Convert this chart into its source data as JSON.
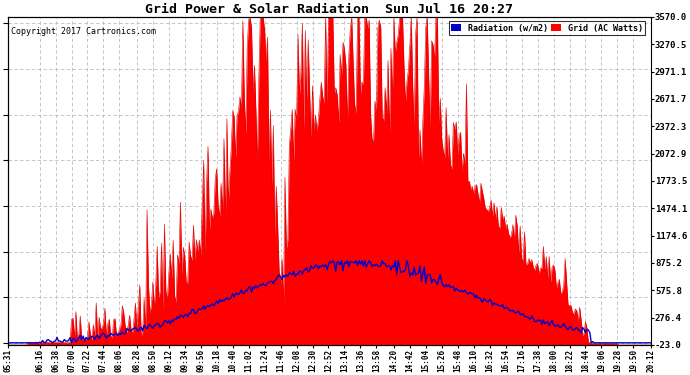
{
  "title": "Grid Power & Solar Radiation  Sun Jul 16 20:27",
  "copyright": "Copyright 2017 Cartronics.com",
  "bg_color": "#ffffff",
  "plot_bg_color": "#ffffff",
  "grid_color": "#bbbbbb",
  "yticks_right": [
    3570.0,
    3270.5,
    2971.1,
    2671.7,
    2372.3,
    2072.9,
    1773.5,
    1474.1,
    1174.6,
    875.2,
    575.8,
    276.4,
    -23.0
  ],
  "ymin": -23.0,
  "ymax": 3570.0,
  "radiation_line_color": "#0000cc",
  "grid_fill_color": "#ff0000",
  "grid_line_color": "#dd0000"
}
